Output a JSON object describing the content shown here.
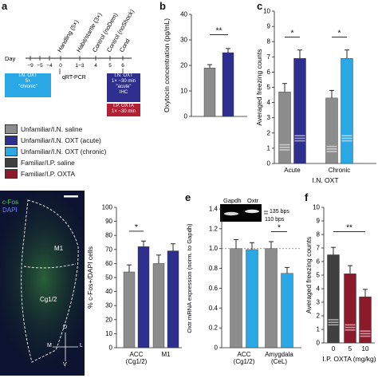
{
  "panels": {
    "a": "a",
    "b": "b",
    "c": "c",
    "d": "d",
    "e": "e",
    "f": "f"
  },
  "colors": {
    "saline": "#8c8c8c",
    "oxt_acute": "#2e2f8f",
    "oxt_chronic": "#2aa8e6",
    "fam_saline": "#404040",
    "fam_oxta": "#8b1a2b",
    "timeline_blue": "#2aa8e6",
    "timeline_navy": "#2e2f8f",
    "timeline_red": "#b32035"
  },
  "timeline": {
    "day_label": "Day",
    "ticks": [
      "−9",
      "−5",
      "−4",
      "0",
      "1−3",
      "4",
      "5",
      "6"
    ],
    "events": [
      "Handling (5×)",
      "Habit/startle (3×)",
      "Control (noDem)",
      "Control (noShock)",
      "Cond"
    ],
    "qrt": "qRT-PCR",
    "box_chronic": [
      "I.N. OXT",
      "5×",
      "\"chronic\""
    ],
    "box_acute": [
      "I.N. OXT",
      "1× ~30 min",
      "\"acute\"",
      "IHC"
    ],
    "box_ip": [
      "I.P. OXTA",
      "1× ~30 min"
    ]
  },
  "legend": [
    {
      "label": "Unfamiliar/I.N. saline",
      "color": "#8c8c8c"
    },
    {
      "label": "Unfamiliar/I.N. OXT (acute)",
      "color": "#2e2f8f"
    },
    {
      "label": "Unfamiliar/I.N. OXT (chronic)",
      "color": "#2aa8e6"
    },
    {
      "label": "Familiar/I.P. saline",
      "color": "#404040"
    },
    {
      "label": "Familiar/I.P. OXTA",
      "color": "#8b1a2b"
    }
  ],
  "micrograph": {
    "channel1": "c-Fos",
    "channel2": "DAPI",
    "region1": "M1",
    "region2": "Cg1/2",
    "axes": [
      "D",
      "M",
      "L",
      "V"
    ]
  },
  "gel": {
    "lanes": [
      "Gapdh",
      "Oxtr"
    ],
    "bands": [
      "135 bps",
      "110 bps"
    ]
  },
  "chart_data": [
    {
      "panel": "b",
      "type": "bar",
      "categories": [
        "saline",
        "OXT (acute)"
      ],
      "values": [
        19.0,
        25.0
      ],
      "errors": [
        1.3,
        1.6
      ],
      "colors": [
        "#8c8c8c",
        "#2e2f8f"
      ],
      "ylabel": "Oxytocin concentration (pg/mL)",
      "ylim": [
        0,
        40
      ],
      "yticks": [
        0,
        10,
        20,
        30,
        40
      ],
      "sig": [
        {
          "a": 0,
          "b": 1,
          "text": "**",
          "y": 32
        }
      ]
    },
    {
      "panel": "c",
      "type": "bar",
      "categories": [
        "saline",
        "OXT acute",
        "saline",
        "OXT chronic"
      ],
      "values": [
        4.7,
        6.9,
        4.3,
        6.9
      ],
      "errors": [
        0.55,
        0.55,
        0.5,
        0.55
      ],
      "colors": [
        "#8c8c8c",
        "#2e2f8f",
        "#8c8c8c",
        "#2aa8e6"
      ],
      "group_labels": [
        "Acute",
        "Chronic"
      ],
      "xlabel": "I.N. OXT",
      "ylabel": "Averaged freezing counts",
      "ylim": [
        0,
        10
      ],
      "yticks": [
        0,
        1,
        2,
        3,
        4,
        5,
        6,
        7,
        8,
        9,
        10
      ],
      "sig": [
        {
          "a": 0,
          "b": 1,
          "text": "*",
          "y": 8.3
        },
        {
          "a": 2,
          "b": 3,
          "text": "*",
          "y": 8.3
        }
      ]
    },
    {
      "panel": "d",
      "type": "bar",
      "categories": [
        "saline",
        "OXT",
        "saline",
        "OXT"
      ],
      "values": [
        54,
        72,
        60,
        69
      ],
      "errors": [
        5,
        4,
        6,
        5
      ],
      "colors": [
        "#8c8c8c",
        "#2e2f8f",
        "#8c8c8c",
        "#2e2f8f"
      ],
      "group_labels": [
        "ACC (Cg1/2)",
        "M1"
      ],
      "ylabel": "% c-Fos+/DAPI cells",
      "ylim": [
        0,
        100
      ],
      "yticks": [
        0,
        10,
        20,
        30,
        40,
        50,
        60,
        70,
        80,
        90,
        100
      ],
      "sig": [
        {
          "a": 0,
          "b": 1,
          "text": "*",
          "y": 83
        }
      ]
    },
    {
      "panel": "e",
      "type": "bar",
      "categories": [
        "saline",
        "OXT",
        "saline",
        "OXT"
      ],
      "values": [
        1.0,
        0.99,
        1.0,
        0.75
      ],
      "errors": [
        0.09,
        0.07,
        0.07,
        0.06
      ],
      "colors": [
        "#8c8c8c",
        "#2aa8e6",
        "#8c8c8c",
        "#2aa8e6"
      ],
      "group_labels": [
        "ACC (Cg1/2)",
        "Amygdala (CeL)"
      ],
      "ylabel": "Oxtr mRNA expression (norm. to Gapdh)",
      "ylim": [
        0,
        1.4
      ],
      "yticks": [
        0,
        0.2,
        0.4,
        0.6,
        0.8,
        1.0,
        1.2,
        1.4
      ],
      "reference_line": 1.0,
      "sig": [
        {
          "a": 2,
          "b": 3,
          "text": "*",
          "y": 1.17
        }
      ]
    },
    {
      "panel": "f",
      "type": "bar",
      "categories": [
        "0",
        "5",
        "10"
      ],
      "values": [
        6.5,
        5.1,
        3.4
      ],
      "errors": [
        0.55,
        0.6,
        0.55
      ],
      "colors": [
        "#404040",
        "#8b1a2b",
        "#8b1a2b"
      ],
      "xlabel": "I.P. OXTA (mg/kg)",
      "ylabel": "Averaged freezing counts",
      "ylim": [
        0,
        10
      ],
      "yticks": [
        0,
        1,
        2,
        3,
        4,
        5,
        6,
        7,
        8,
        9,
        10
      ],
      "sig": [
        {
          "a": 0,
          "b": 2,
          "text": "**",
          "y": 8.2
        }
      ]
    }
  ]
}
